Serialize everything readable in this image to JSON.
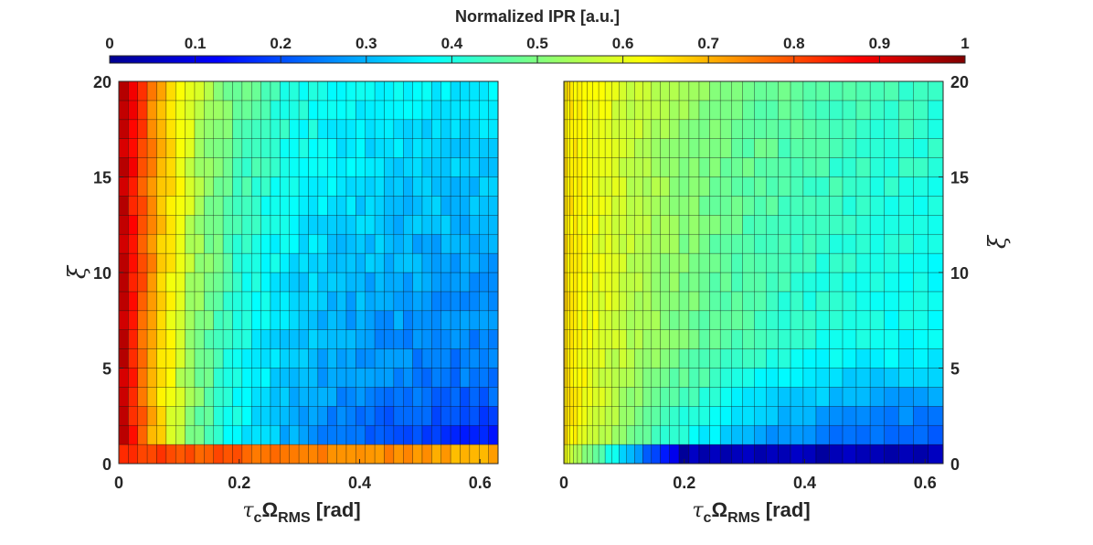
{
  "chart_data": [
    {
      "type": "colorbar",
      "title": "Normalized IPR [a.u.]",
      "colormap": "jet",
      "range": [
        0,
        1
      ],
      "ticks": [
        "0",
        "0.1",
        "0.2",
        "0.3",
        "0.4",
        "0.5",
        "0.6",
        "0.7",
        "0.8",
        "0.9",
        "1"
      ]
    },
    {
      "type": "heatmap",
      "panel": "left",
      "xlabel": "τcΩRMS [rad]",
      "ylabel": "ξ",
      "xlim": [
        0,
        0.63
      ],
      "ylim": [
        0,
        20
      ],
      "xticks": [
        "0",
        "0.2",
        "0.4",
        "0.6"
      ],
      "yticks": [
        "0",
        "5",
        "10",
        "15",
        "20"
      ],
      "yaxis_side": "left",
      "columns": 40,
      "rows": 20,
      "description": "Normalized IPR high (0.8-1.0) at small tau_c*Omega_RMS, decaying to 0.1-0.3 at large values; near-zero xi row stays high (~0.75) far out; lowest values at large x and small xi"
    },
    {
      "type": "heatmap",
      "panel": "right",
      "xlabel": "τcΩRMS [rad]",
      "ylabel": "ξ",
      "xlim": [
        0,
        0.63
      ],
      "ylim": [
        0,
        20
      ],
      "xticks": [
        "0",
        "0.2",
        "0.4",
        "0.6"
      ],
      "yticks": [
        "0",
        "5",
        "10",
        "15",
        "20"
      ],
      "yaxis_side": "right",
      "columns": 40,
      "rows": 20,
      "description": "Normalized IPR ~0.65 at small tau_c*Omega_RMS, decaying to 0.3-0.4 at large x and high xi; minimum ~0.05 at large x and small xi"
    }
  ]
}
